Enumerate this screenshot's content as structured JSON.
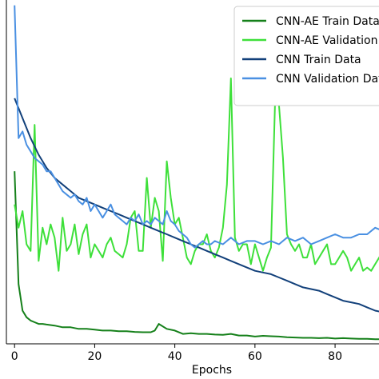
{
  "chart_data": {
    "type": "line",
    "title": "",
    "xlabel": "Epochs",
    "ylabel": "",
    "xlim": [
      -1,
      92
    ],
    "ylim": [
      0,
      1
    ],
    "x_ticks": [
      0,
      20,
      40,
      60,
      80
    ],
    "x_tick_labels": [
      "0",
      "20",
      "40",
      "60",
      "80"
    ],
    "grid": false,
    "legend_position": "top-right",
    "series": [
      {
        "name": "CNN-AE Train Data",
        "color": "#15801a",
        "x": [
          0,
          1,
          2,
          3,
          4,
          5,
          6,
          7,
          8,
          10,
          12,
          14,
          16,
          18,
          20,
          22,
          24,
          26,
          28,
          30,
          32,
          34,
          35,
          36,
          38,
          40,
          42,
          44,
          46,
          48,
          50,
          52,
          54,
          56,
          58,
          60,
          62,
          64,
          66,
          68,
          70,
          72,
          74,
          76,
          78,
          80,
          82,
          84,
          86,
          88,
          90,
          92
        ],
        "y": [
          0.52,
          0.18,
          0.1,
          0.08,
          0.07,
          0.065,
          0.06,
          0.06,
          0.058,
          0.055,
          0.05,
          0.05,
          0.045,
          0.045,
          0.043,
          0.04,
          0.04,
          0.038,
          0.038,
          0.036,
          0.035,
          0.035,
          0.04,
          0.06,
          0.045,
          0.04,
          0.03,
          0.032,
          0.03,
          0.03,
          0.028,
          0.027,
          0.03,
          0.025,
          0.025,
          0.022,
          0.024,
          0.023,
          0.022,
          0.02,
          0.019,
          0.018,
          0.018,
          0.017,
          0.018,
          0.016,
          0.017,
          0.016,
          0.015,
          0.015,
          0.014,
          0.014
        ]
      },
      {
        "name": "CNN-AE Validation Data",
        "color": "#3ee03a",
        "x": [
          0,
          1,
          2,
          3,
          4,
          5,
          6,
          7,
          8,
          9,
          10,
          11,
          12,
          13,
          14,
          15,
          16,
          17,
          18,
          19,
          20,
          21,
          22,
          23,
          24,
          25,
          26,
          27,
          28,
          29,
          30,
          31,
          32,
          33,
          34,
          35,
          36,
          37,
          38,
          39,
          40,
          41,
          42,
          43,
          44,
          45,
          46,
          47,
          48,
          49,
          50,
          51,
          52,
          53,
          54,
          55,
          56,
          57,
          58,
          59,
          60,
          61,
          62,
          63,
          64,
          65,
          66,
          67,
          68,
          69,
          70,
          71,
          72,
          73,
          74,
          75,
          76,
          77,
          78,
          79,
          80,
          81,
          82,
          83,
          84,
          85,
          86,
          87,
          88,
          89,
          90,
          91,
          92
        ],
        "y": [
          0.42,
          0.35,
          0.4,
          0.3,
          0.28,
          0.66,
          0.25,
          0.35,
          0.3,
          0.36,
          0.32,
          0.22,
          0.38,
          0.28,
          0.3,
          0.36,
          0.27,
          0.33,
          0.36,
          0.26,
          0.3,
          0.28,
          0.26,
          0.3,
          0.32,
          0.28,
          0.27,
          0.26,
          0.3,
          0.38,
          0.4,
          0.28,
          0.28,
          0.5,
          0.35,
          0.44,
          0.4,
          0.25,
          0.55,
          0.44,
          0.36,
          0.38,
          0.32,
          0.26,
          0.24,
          0.28,
          0.3,
          0.3,
          0.33,
          0.28,
          0.26,
          0.29,
          0.35,
          0.48,
          0.8,
          0.32,
          0.28,
          0.3,
          0.3,
          0.24,
          0.3,
          0.26,
          0.22,
          0.26,
          0.29,
          0.72,
          0.72,
          0.56,
          0.33,
          0.3,
          0.28,
          0.3,
          0.26,
          0.26,
          0.3,
          0.24,
          0.26,
          0.28,
          0.3,
          0.24,
          0.24,
          0.26,
          0.28,
          0.26,
          0.22,
          0.24,
          0.26,
          0.22,
          0.23,
          0.22,
          0.24,
          0.26,
          0.28
        ]
      },
      {
        "name": "CNN Train Data",
        "color": "#12407a",
        "x": [
          0,
          2,
          4,
          6,
          8,
          10,
          12,
          14,
          16,
          18,
          20,
          22,
          24,
          26,
          28,
          30,
          32,
          34,
          36,
          38,
          40,
          42,
          44,
          46,
          48,
          50,
          52,
          54,
          56,
          58,
          60,
          62,
          64,
          66,
          68,
          70,
          72,
          74,
          76,
          78,
          80,
          82,
          84,
          86,
          88,
          90,
          92
        ],
        "y": [
          0.74,
          0.68,
          0.62,
          0.57,
          0.53,
          0.5,
          0.48,
          0.46,
          0.44,
          0.43,
          0.42,
          0.41,
          0.4,
          0.39,
          0.38,
          0.37,
          0.36,
          0.35,
          0.34,
          0.33,
          0.32,
          0.31,
          0.3,
          0.29,
          0.28,
          0.27,
          0.26,
          0.25,
          0.24,
          0.23,
          0.22,
          0.215,
          0.21,
          0.2,
          0.19,
          0.18,
          0.17,
          0.165,
          0.16,
          0.15,
          0.14,
          0.13,
          0.125,
          0.12,
          0.11,
          0.1,
          0.095
        ]
      },
      {
        "name": "CNN Validation Data",
        "color": "#4a90e2",
        "x": [
          0,
          1,
          2,
          3,
          4,
          5,
          6,
          7,
          8,
          9,
          10,
          11,
          12,
          13,
          14,
          15,
          16,
          17,
          18,
          19,
          20,
          21,
          22,
          23,
          24,
          25,
          26,
          27,
          28,
          29,
          30,
          31,
          32,
          33,
          34,
          35,
          36,
          37,
          38,
          39,
          40,
          41,
          42,
          43,
          44,
          45,
          46,
          47,
          48,
          49,
          50,
          52,
          54,
          56,
          58,
          60,
          62,
          64,
          66,
          68,
          70,
          72,
          74,
          76,
          78,
          80,
          82,
          84,
          86,
          88,
          90,
          92
        ],
        "y": [
          1.02,
          0.62,
          0.64,
          0.6,
          0.58,
          0.56,
          0.55,
          0.54,
          0.52,
          0.52,
          0.5,
          0.48,
          0.46,
          0.45,
          0.44,
          0.45,
          0.43,
          0.42,
          0.44,
          0.4,
          0.42,
          0.4,
          0.38,
          0.4,
          0.42,
          0.39,
          0.38,
          0.37,
          0.36,
          0.38,
          0.37,
          0.39,
          0.36,
          0.37,
          0.36,
          0.38,
          0.37,
          0.36,
          0.4,
          0.37,
          0.36,
          0.34,
          0.33,
          0.32,
          0.3,
          0.29,
          0.3,
          0.31,
          0.3,
          0.3,
          0.31,
          0.3,
          0.32,
          0.3,
          0.31,
          0.31,
          0.3,
          0.31,
          0.3,
          0.32,
          0.31,
          0.32,
          0.3,
          0.31,
          0.32,
          0.33,
          0.32,
          0.32,
          0.33,
          0.33,
          0.35,
          0.34
        ]
      }
    ]
  }
}
